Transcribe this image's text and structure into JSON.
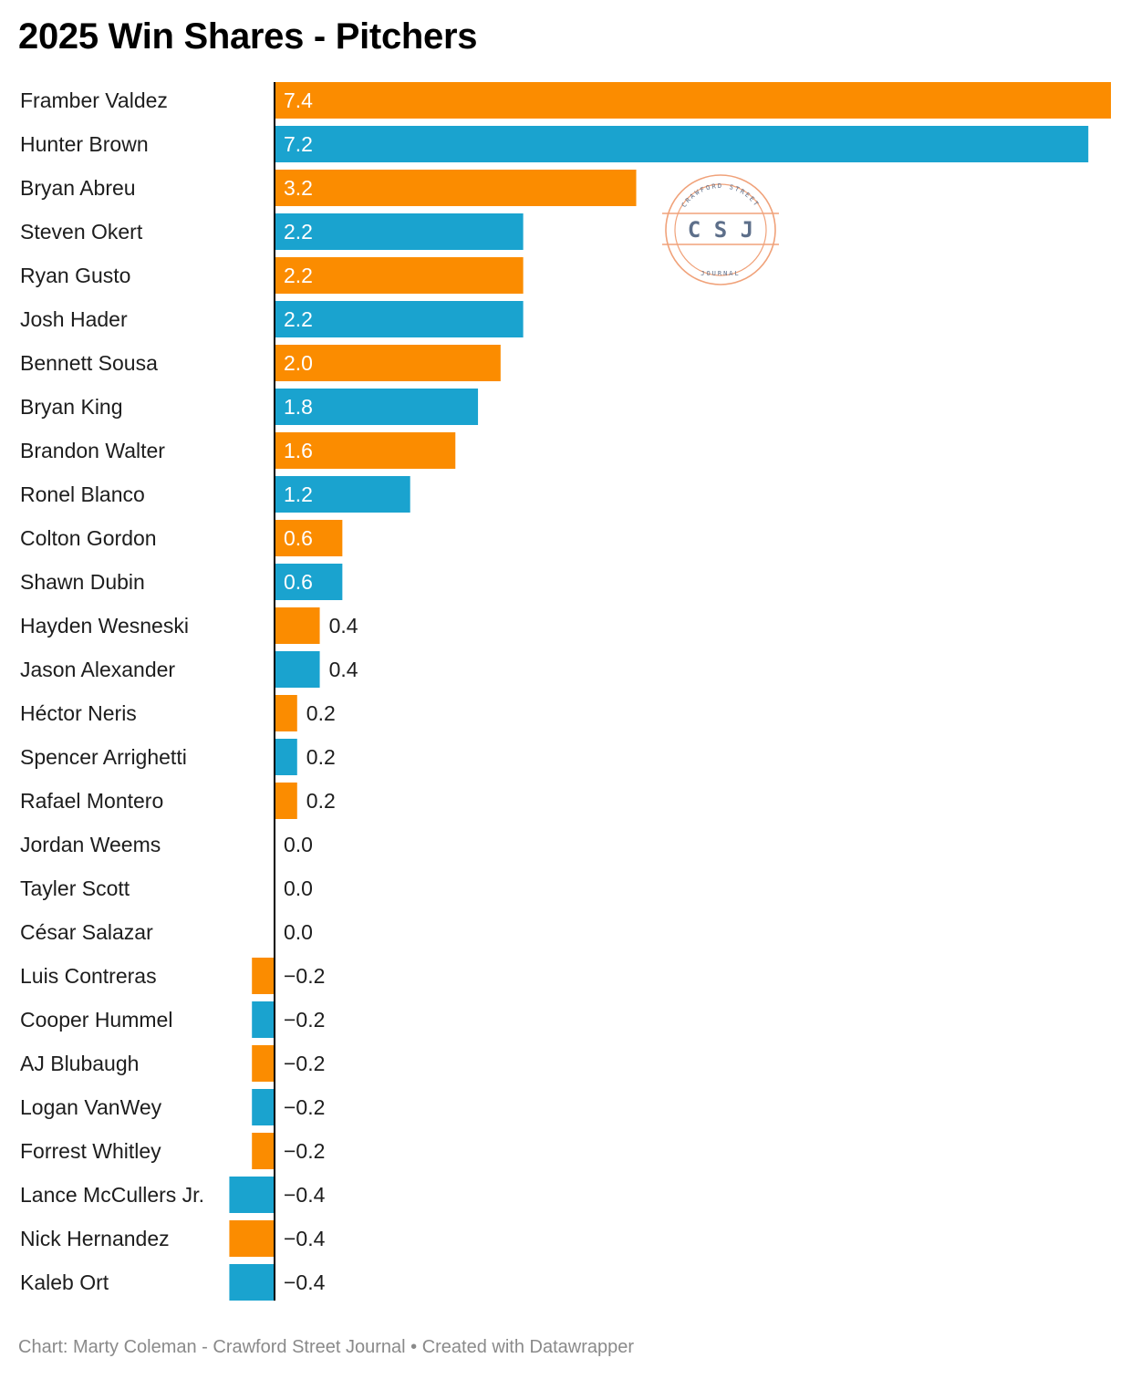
{
  "title": "2025 Win Shares - Pitchers",
  "footer": "Chart: Marty Coleman - Crawford Street Journal • Created with Datawrapper",
  "logo": {
    "top_text": "CRAWFORD STREET",
    "initials": "C S J",
    "bottom_text": "JOURNAL",
    "color": "#f0a27a",
    "initials_color": "#5d6f8a"
  },
  "colors": {
    "orange": "#fb8c00",
    "blue": "#1aa3cf",
    "axis": "#000000",
    "label_inside": "#ffffff",
    "label_outside": "#1d1d1d"
  },
  "chart_data": {
    "type": "bar",
    "orientation": "horizontal",
    "title": "2025 Win Shares - Pitchers",
    "categories": [
      "Framber Valdez",
      "Hunter Brown",
      "Bryan Abreu",
      "Steven Okert",
      "Ryan Gusto",
      "Josh Hader",
      "Bennett Sousa",
      "Bryan King",
      "Brandon Walter",
      "Ronel Blanco",
      "Colton Gordon",
      "Shawn Dubin",
      "Hayden Wesneski",
      "Jason Alexander",
      "Héctor Neris",
      "Spencer Arrighetti",
      "Rafael Montero",
      "Jordan Weems",
      "Tayler Scott",
      "César Salazar",
      "Luis Contreras",
      "Cooper Hummel",
      "AJ Blubaugh",
      "Logan VanWey",
      "Forrest Whitley",
      "Lance McCullers Jr.",
      "Nick Hernandez",
      "Kaleb Ort"
    ],
    "values": [
      7.4,
      7.2,
      3.2,
      2.2,
      2.2,
      2.2,
      2.0,
      1.8,
      1.6,
      1.2,
      0.6,
      0.6,
      0.4,
      0.4,
      0.2,
      0.2,
      0.2,
      0.0,
      0.0,
      0.0,
      -0.2,
      -0.2,
      -0.2,
      -0.2,
      -0.2,
      -0.4,
      -0.4,
      -0.4
    ],
    "labels": [
      "7.4",
      "7.2",
      "3.2",
      "2.2",
      "2.2",
      "2.2",
      "2.0",
      "1.8",
      "1.6",
      "1.2",
      "0.6",
      "0.6",
      "0.4",
      "0.4",
      "0.2",
      "0.2",
      "0.2",
      "0.0",
      "0.0",
      "0.0",
      "−0.2",
      "−0.2",
      "−0.2",
      "−0.2",
      "−0.2",
      "−0.4",
      "−0.4",
      "−0.4"
    ],
    "bar_colors": [
      "orange",
      "blue",
      "orange",
      "blue",
      "orange",
      "blue",
      "orange",
      "blue",
      "orange",
      "blue",
      "orange",
      "blue",
      "orange",
      "blue",
      "orange",
      "blue",
      "orange",
      "blue",
      "orange",
      "blue",
      "orange",
      "blue",
      "orange",
      "blue",
      "orange",
      "blue",
      "orange",
      "blue"
    ],
    "xlim": [
      -0.4,
      7.4
    ],
    "grid": false,
    "legend": "none"
  }
}
